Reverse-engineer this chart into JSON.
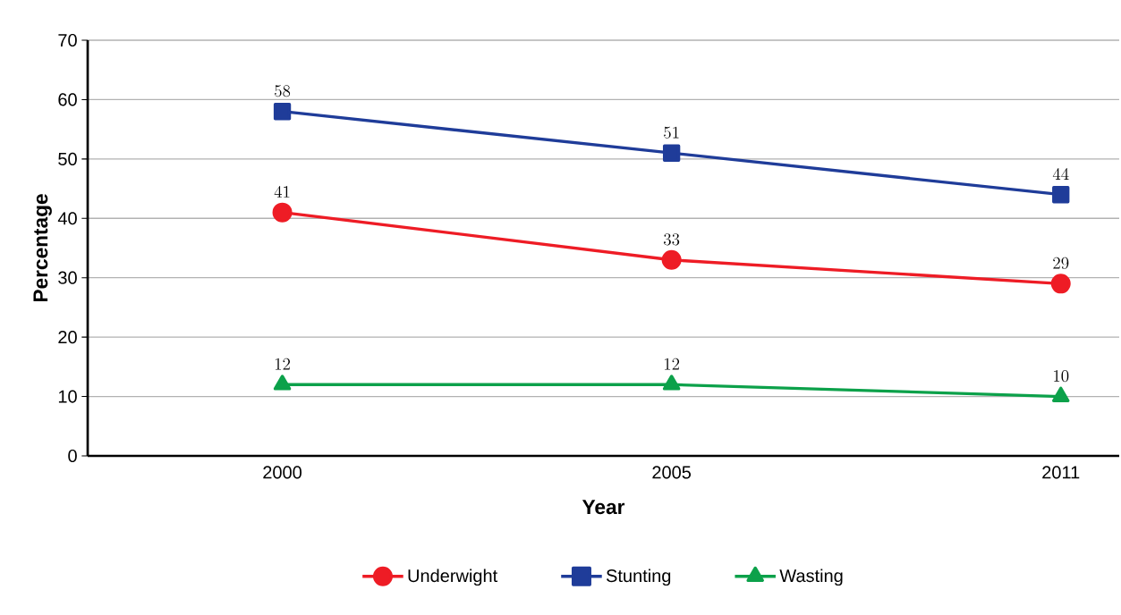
{
  "chart_data": {
    "type": "line",
    "xlabel": "Year",
    "ylabel": "Percentage",
    "categories": [
      "2000",
      "2005",
      "2011"
    ],
    "series": [
      {
        "name": "Underwight",
        "color": "#ee1c25",
        "marker": "circle",
        "values": [
          41,
          33,
          29
        ]
      },
      {
        "name": "Stunting",
        "color": "#1f3c99",
        "marker": "square",
        "values": [
          58,
          51,
          44
        ]
      },
      {
        "name": "Wasting",
        "color": "#0ca14a",
        "marker": "triangle",
        "values": [
          12,
          12,
          10
        ]
      }
    ],
    "ylim": [
      0,
      70
    ],
    "yticks": [
      0,
      10,
      20,
      30,
      40,
      50,
      60,
      70
    ],
    "grid": "y",
    "legend": "bottom",
    "data_labels": true
  }
}
